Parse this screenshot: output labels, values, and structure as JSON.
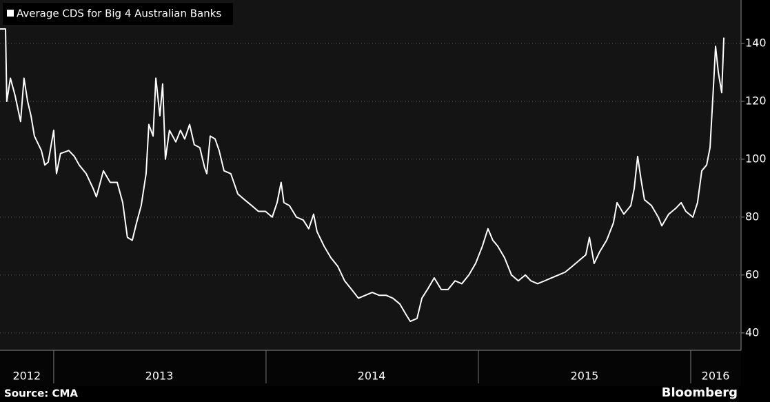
{
  "chart_data": {
    "type": "line",
    "source": "Source: CMA",
    "credit": "Bloomberg",
    "xlim": [
      2012.747,
      2016.237
    ],
    "ylim": [
      34,
      155
    ],
    "yticks": [
      40,
      60,
      80,
      100,
      120,
      140
    ],
    "xticks": [
      {
        "value": 2012.873,
        "label": "2012"
      },
      {
        "value": 2013.497,
        "label": "2013"
      },
      {
        "value": 2014.497,
        "label": "2014"
      },
      {
        "value": 2015.5,
        "label": "2015"
      },
      {
        "value": 2016.117,
        "label": "2016"
      }
    ],
    "x_boundaries": [
      2013,
      2014,
      2015,
      2016
    ],
    "grid": true,
    "legend": "top-left",
    "x": [
      2012.747,
      2012.773,
      2012.779,
      2012.796,
      2012.818,
      2012.844,
      2012.86,
      2012.877,
      2012.893,
      2012.909,
      2012.942,
      2012.958,
      2012.974,
      2013.0,
      2013.013,
      2013.032,
      2013.071,
      2013.097,
      2013.12,
      2013.153,
      2013.185,
      2013.201,
      2013.234,
      2013.266,
      2013.299,
      2013.325,
      2013.347,
      2013.37,
      2013.39,
      2013.412,
      2013.435,
      2013.448,
      2013.468,
      2013.481,
      2013.5,
      2013.513,
      2013.526,
      2013.545,
      2013.575,
      2013.597,
      2013.617,
      2013.64,
      2013.662,
      2013.688,
      2013.711,
      2013.721,
      2013.737,
      2013.76,
      2013.779,
      2013.802,
      2013.834,
      2013.867,
      2013.899,
      2013.932,
      2013.964,
      2013.997,
      2014.029,
      2014.052,
      2014.071,
      2014.084,
      2014.11,
      2014.143,
      2014.175,
      2014.201,
      2014.224,
      2014.24,
      2014.273,
      2014.305,
      2014.338,
      2014.37,
      2014.403,
      2014.435,
      2014.468,
      2014.5,
      2014.532,
      2014.565,
      2014.597,
      2014.63,
      2014.662,
      2014.679,
      2014.711,
      2014.734,
      2014.76,
      2014.792,
      2014.825,
      2014.857,
      2014.89,
      2014.922,
      2014.955,
      2014.987,
      2015.019,
      2015.045,
      2015.068,
      2015.091,
      2015.123,
      2015.156,
      2015.188,
      2015.221,
      2015.247,
      2015.279,
      2015.312,
      2015.344,
      2015.377,
      2015.409,
      2015.442,
      2015.474,
      2015.506,
      2015.523,
      2015.545,
      2015.571,
      2015.604,
      2015.636,
      2015.653,
      2015.685,
      2015.718,
      2015.734,
      2015.75,
      2015.766,
      2015.782,
      2015.815,
      2015.831,
      2015.847,
      2015.864,
      2015.896,
      2015.929,
      2015.955,
      2015.977,
      2016.01,
      2016.032,
      2016.052,
      2016.075,
      2016.091,
      2016.107,
      2016.117,
      2016.13,
      2016.146,
      2016.156
    ],
    "series": [
      {
        "name": "Average CDS for Big 4 Australian Banks",
        "color": "#ffffff",
        "values": [
          145,
          145,
          120,
          128,
          122,
          113,
          128,
          120,
          115,
          108,
          103,
          98,
          99,
          110,
          95,
          102,
          103,
          101,
          98,
          95,
          90,
          87,
          96,
          92,
          92,
          85,
          73,
          72,
          78,
          84,
          95,
          112,
          108,
          128,
          115,
          126,
          100,
          110,
          106,
          110,
          107,
          112,
          105,
          104,
          97,
          95,
          108,
          107,
          103,
          96,
          95,
          88,
          86,
          84,
          82,
          82,
          80,
          85,
          92,
          85,
          84,
          80,
          79,
          76,
          81,
          75,
          70,
          66,
          63,
          58,
          55,
          52,
          53,
          54,
          53,
          53,
          52,
          50,
          46,
          44,
          45,
          52,
          55,
          59,
          55,
          55,
          58,
          57,
          60,
          64,
          70,
          76,
          72,
          70,
          66,
          60,
          58,
          60,
          58,
          57,
          58,
          59,
          60,
          61,
          63,
          65,
          67,
          73,
          64,
          68,
          72,
          78,
          85,
          81,
          84,
          90,
          101,
          93,
          86,
          84,
          82,
          80,
          77,
          81,
          83,
          85,
          82,
          80,
          85,
          96,
          98,
          104,
          125,
          139,
          130,
          123,
          142
        ]
      }
    ]
  }
}
